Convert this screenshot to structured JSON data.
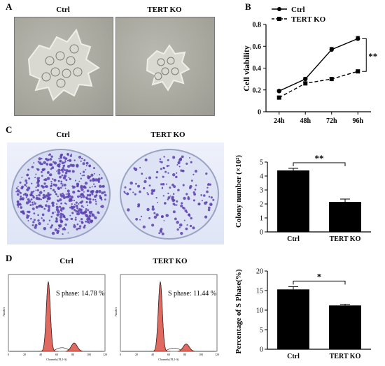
{
  "panels": {
    "A": {
      "letter": "A",
      "labels": [
        "Ctrl",
        "TERT KO"
      ]
    },
    "B": {
      "letter": "B"
    },
    "C": {
      "letter": "C",
      "labels": [
        "Ctrl",
        "TERT KO"
      ]
    },
    "D": {
      "letter": "D",
      "labels": [
        "Ctrl",
        "TERT KO"
      ],
      "s_phase_labels": [
        "S phase: 14.78 %",
        "S phase: 11.44 %"
      ],
      "histogram_axis_text": {
        "ylabel": "Number",
        "xlabel": "Channels (FL2-A)"
      },
      "histogram_ticks": [
        "0",
        "20",
        "40",
        "60",
        "80",
        "100",
        "120"
      ]
    }
  },
  "colors": {
    "bar": "#000000",
    "histogram_fill": "#e06a5f",
    "histogram_stroke": "#8b1a12",
    "colony_stain": "#5a3fb0",
    "dish_bg": "#e4e8f7"
  },
  "chart_data": [
    {
      "id": "B",
      "type": "line",
      "x": [
        "24h",
        "48h",
        "72h",
        "96h"
      ],
      "ylabel": "Cell viability",
      "ylim": [
        0,
        0.8
      ],
      "yticks": [
        "0",
        "0.2",
        "0.4",
        "0.6",
        "0.8"
      ],
      "legend_position": "top-left",
      "series": [
        {
          "name": "Ctrl",
          "values": [
            0.19,
            0.3,
            0.57,
            0.67
          ],
          "errors": [
            0.01,
            0.015,
            0.02,
            0.02
          ],
          "style": "solid",
          "marker": "circle"
        },
        {
          "name": "TERT KO",
          "values": [
            0.13,
            0.26,
            0.3,
            0.37
          ],
          "errors": [
            0.01,
            0.01,
            0.01,
            0.01
          ],
          "style": "dashed",
          "marker": "square"
        }
      ],
      "annotation": "**"
    },
    {
      "id": "C",
      "type": "bar",
      "categories": [
        "Ctrl",
        "TERT KO"
      ],
      "values": [
        4.4,
        2.15
      ],
      "errors": [
        0.15,
        0.2
      ],
      "ylabel": "Colony number (×10²)",
      "ylim": [
        0,
        5
      ],
      "yticks": [
        "0",
        "1",
        "2",
        "3",
        "4",
        "5"
      ],
      "annotation": "**"
    },
    {
      "id": "D",
      "type": "bar",
      "categories": [
        "Ctrl",
        "TERT KO"
      ],
      "values": [
        15.3,
        11.2
      ],
      "errors": [
        0.7,
        0.3
      ],
      "ylabel": "Percentage of S Phase(%)",
      "ylim": [
        0,
        20
      ],
      "yticks": [
        "0",
        "5",
        "10",
        "15",
        "20"
      ],
      "annotation": "*"
    }
  ]
}
